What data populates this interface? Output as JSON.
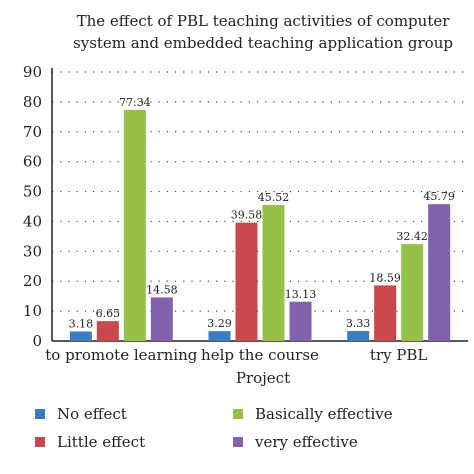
{
  "chart_data": {
    "type": "bar",
    "title_lines": [
      "The effect of PBL teaching activities of computer",
      "system and embedded teaching application group"
    ],
    "xlabel": "Project",
    "ylim": [
      0,
      90
    ],
    "yticks": [
      0,
      10,
      20,
      30,
      40,
      50,
      60,
      70,
      80,
      90
    ],
    "grid": "dotted horizontal",
    "legend_position": "bottom",
    "categories": [
      "to promote learning",
      "help the course",
      "try PBL"
    ],
    "series": [
      {
        "name": "No effect",
        "color": "#3a7cc4",
        "values": [
          3.18,
          3.29,
          3.33
        ],
        "labels": [
          "3.18",
          "3.29",
          "3.33"
        ]
      },
      {
        "name": "Little effect",
        "color": "#c9494b",
        "values": [
          6.65,
          39.58,
          18.59
        ],
        "labels": [
          "6.65",
          "39.58",
          "18.59"
        ]
      },
      {
        "name": "Basically effective",
        "color": "#95c148",
        "values": [
          77.34,
          45.52,
          32.42
        ],
        "labels": [
          "77.34",
          "45.52",
          "32.42"
        ]
      },
      {
        "name": "very effective",
        "color": "#8261ad",
        "values": [
          14.58,
          13.13,
          45.79
        ],
        "labels": [
          "14.58",
          "13.13",
          "45.79"
        ]
      }
    ]
  }
}
